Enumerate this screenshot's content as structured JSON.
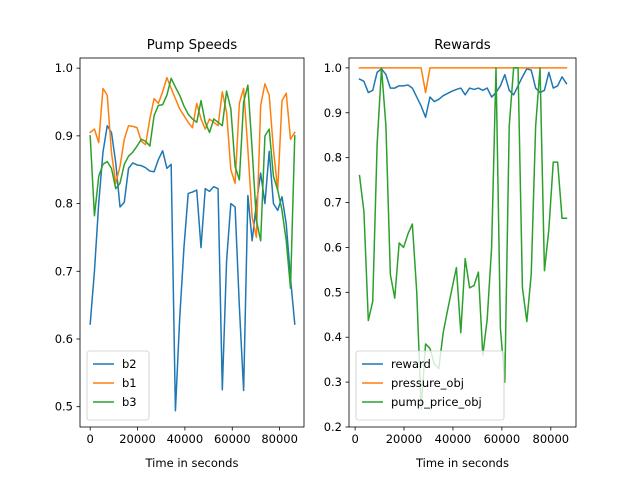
{
  "chart_data": [
    {
      "type": "line",
      "title": "Pump Speeds",
      "xlabel": "Time in seconds",
      "ylabel": "",
      "xlim": [
        -4300,
        90300
      ],
      "ylim": [
        0.47,
        1.015
      ],
      "xticks": [
        0,
        20000,
        40000,
        60000,
        80000
      ],
      "xtick_labels": [
        "0",
        "20000",
        "40000",
        "60000",
        "80000"
      ],
      "yticks": [
        0.5,
        0.6,
        0.7,
        0.8,
        0.9,
        1.0
      ],
      "ytick_labels": [
        "0.5",
        "0.6",
        "0.7",
        "0.8",
        "0.9",
        "1.0"
      ],
      "grid": false,
      "legend": "lower-left",
      "series": [
        {
          "name": "b2",
          "color": "#1f77b4",
          "x": [
            0,
            1800,
            3600,
            5400,
            7200,
            9000,
            10800,
            12600,
            14400,
            16200,
            18000,
            19800,
            21600,
            23400,
            25200,
            27000,
            28800,
            30600,
            32400,
            34200,
            36000,
            37800,
            39600,
            41400,
            43200,
            45000,
            46800,
            48600,
            50400,
            52200,
            54000,
            55800,
            57600,
            59400,
            61200,
            63000,
            64800,
            66600,
            68400,
            70200,
            72000,
            73800,
            75600,
            77400,
            79200,
            81000,
            82800,
            84600,
            86400
          ],
          "y": [
            0.622,
            0.7,
            0.8,
            0.876,
            0.915,
            0.905,
            0.86,
            0.795,
            0.802,
            0.852,
            0.86,
            0.857,
            0.856,
            0.853,
            0.848,
            0.847,
            0.865,
            0.878,
            0.852,
            0.858,
            0.494,
            0.63,
            0.735,
            0.815,
            0.817,
            0.82,
            0.735,
            0.822,
            0.818,
            0.825,
            0.822,
            0.525,
            0.715,
            0.8,
            0.795,
            0.648,
            0.524,
            0.812,
            0.745,
            0.8,
            0.845,
            0.8,
            0.877,
            0.8,
            0.79,
            0.81,
            0.77,
            0.69,
            0.622
          ]
        },
        {
          "name": "b1",
          "color": "#ff7f0e",
          "x": [
            0,
            1800,
            3600,
            5400,
            7200,
            9000,
            10800,
            12600,
            14400,
            16200,
            18000,
            19800,
            21600,
            23400,
            25200,
            27000,
            28800,
            30600,
            32400,
            34200,
            36000,
            37800,
            39600,
            41400,
            43200,
            45000,
            46800,
            48600,
            50400,
            52200,
            54000,
            55800,
            57600,
            59400,
            61200,
            63000,
            64800,
            66600,
            68400,
            70200,
            72000,
            73800,
            75600,
            77400,
            79200,
            81000,
            82800,
            84600,
            86400
          ],
          "y": [
            0.905,
            0.91,
            0.89,
            0.97,
            0.96,
            0.875,
            0.83,
            0.855,
            0.895,
            0.915,
            0.914,
            0.912,
            0.892,
            0.887,
            0.925,
            0.955,
            0.948,
            0.965,
            0.986,
            0.97,
            0.955,
            0.94,
            0.93,
            0.92,
            0.912,
            0.948,
            0.925,
            0.91,
            0.925,
            0.92,
            0.915,
            0.965,
            0.935,
            0.85,
            0.83,
            0.948,
            0.97,
            0.88,
            0.78,
            0.75,
            0.945,
            0.977,
            0.96,
            0.88,
            0.82,
            0.952,
            0.963,
            0.895,
            0.905
          ]
        },
        {
          "name": "b3",
          "color": "#2ca02c",
          "x": [
            0,
            1800,
            3600,
            5400,
            7200,
            9000,
            10800,
            12600,
            14400,
            16200,
            18000,
            19800,
            21600,
            23400,
            25200,
            27000,
            28800,
            30600,
            32400,
            34200,
            36000,
            37800,
            39600,
            41400,
            43200,
            45000,
            46800,
            48600,
            50400,
            52200,
            54000,
            55800,
            57600,
            59400,
            61200,
            63000,
            64800,
            66600,
            68400,
            70200,
            72000,
            73800,
            75600,
            77400,
            79200,
            81000,
            82800,
            84600,
            86400
          ],
          "y": [
            0.9,
            0.782,
            0.84,
            0.858,
            0.862,
            0.852,
            0.822,
            0.83,
            0.858,
            0.87,
            0.876,
            0.885,
            0.895,
            0.892,
            0.885,
            0.93,
            0.945,
            0.946,
            0.96,
            0.985,
            0.972,
            0.96,
            0.944,
            0.932,
            0.925,
            0.92,
            0.952,
            0.92,
            0.905,
            0.925,
            0.92,
            0.915,
            0.966,
            0.94,
            0.855,
            0.835,
            0.95,
            0.975,
            0.88,
            0.775,
            0.745,
            0.9,
            0.91,
            0.84,
            0.82,
            0.79,
            0.745,
            0.675,
            0.9
          ]
        }
      ]
    },
    {
      "type": "line",
      "title": "Rewards",
      "xlabel": "Time in seconds",
      "ylabel": "",
      "xlim": [
        -2500,
        90300
      ],
      "ylim": [
        0.2,
        1.022
      ],
      "xticks": [
        0,
        20000,
        40000,
        60000,
        80000
      ],
      "xtick_labels": [
        "0",
        "20000",
        "40000",
        "60000",
        "80000"
      ],
      "yticks": [
        0.2,
        0.3,
        0.4,
        0.5,
        0.6,
        0.7,
        0.8,
        0.9,
        1.0
      ],
      "ytick_labels": [
        "0.2",
        "0.3",
        "0.4",
        "0.5",
        "0.6",
        "0.7",
        "0.8",
        "0.9",
        "1.0"
      ],
      "grid": false,
      "legend": "lower-left",
      "series": [
        {
          "name": "reward",
          "color": "#1f77b4",
          "x": [
            1800,
            3600,
            5400,
            7200,
            9000,
            10800,
            12600,
            14400,
            16200,
            18000,
            19800,
            21600,
            23400,
            25200,
            27000,
            28800,
            30600,
            32400,
            34200,
            36000,
            37800,
            39600,
            41400,
            43200,
            45000,
            46800,
            48600,
            50400,
            52200,
            54000,
            55800,
            57600,
            59400,
            61200,
            63000,
            64800,
            66600,
            68400,
            70200,
            72000,
            73800,
            75600,
            77400,
            79200,
            81000,
            82800,
            84600,
            86400
          ],
          "y": [
            0.975,
            0.97,
            0.945,
            0.95,
            0.99,
            0.998,
            0.985,
            0.955,
            0.955,
            0.96,
            0.96,
            0.962,
            0.955,
            0.935,
            0.915,
            0.89,
            0.935,
            0.925,
            0.93,
            0.938,
            0.943,
            0.948,
            0.952,
            0.955,
            0.94,
            0.955,
            0.952,
            0.955,
            0.95,
            0.955,
            0.935,
            0.945,
            0.96,
            0.985,
            0.95,
            0.94,
            0.96,
            0.98,
            0.998,
            0.995,
            0.955,
            0.945,
            0.95,
            0.99,
            0.955,
            0.96,
            0.98,
            0.965
          ]
        },
        {
          "name": "pressure_obj",
          "color": "#ff7f0e",
          "x": [
            1800,
            3600,
            5400,
            7200,
            9000,
            10800,
            12600,
            14400,
            16200,
            18000,
            19800,
            21600,
            23400,
            25200,
            27000,
            28800,
            30600,
            32400,
            34200,
            36000,
            37800,
            39600,
            41400,
            43200,
            45000,
            46800,
            48600,
            50400,
            52200,
            54000,
            55800,
            57600,
            59400,
            61200,
            63000,
            64800,
            66600,
            68400,
            70200,
            72000,
            73800,
            75600,
            77400,
            79200,
            81000,
            82800,
            84600,
            86400
          ],
          "y": [
            1.0,
            1.0,
            1.0,
            1.0,
            1.0,
            1.0,
            1.0,
            1.0,
            1.0,
            1.0,
            1.0,
            1.0,
            1.0,
            1.0,
            1.0,
            0.945,
            1.0,
            1.0,
            1.0,
            1.0,
            1.0,
            1.0,
            1.0,
            1.0,
            1.0,
            1.0,
            1.0,
            1.0,
            1.0,
            1.0,
            1.0,
            1.0,
            1.0,
            1.0,
            1.0,
            1.0,
            1.0,
            1.0,
            1.0,
            1.0,
            1.0,
            1.0,
            1.0,
            1.0,
            1.0,
            1.0,
            1.0,
            1.0
          ]
        },
        {
          "name": "pump_price_obj",
          "color": "#2ca02c",
          "x": [
            1800,
            3600,
            5400,
            7200,
            9000,
            10800,
            12600,
            14400,
            16200,
            18000,
            19800,
            21600,
            23400,
            25200,
            27000,
            28800,
            30600,
            32400,
            34200,
            36000,
            37800,
            39600,
            41400,
            43200,
            45000,
            46800,
            48600,
            50400,
            52200,
            54000,
            55800,
            57600,
            59400,
            61200,
            63000,
            64800,
            66600,
            68400,
            70200,
            72000,
            73800,
            75600,
            77400,
            79200,
            81000,
            82800,
            84600,
            86400
          ],
          "y": [
            0.76,
            0.68,
            0.437,
            0.48,
            0.83,
            1.0,
            0.87,
            0.54,
            0.487,
            0.61,
            0.6,
            0.63,
            0.652,
            0.5,
            0.24,
            0.385,
            0.375,
            0.34,
            0.33,
            0.41,
            0.46,
            0.508,
            0.555,
            0.41,
            0.575,
            0.51,
            0.515,
            0.545,
            0.36,
            0.44,
            0.6,
            1.0,
            0.42,
            0.3,
            0.87,
            1.0,
            1.0,
            0.51,
            0.435,
            0.54,
            0.87,
            1.0,
            0.548,
            0.64,
            0.79,
            0.79,
            0.665,
            0.665
          ]
        }
      ]
    }
  ]
}
